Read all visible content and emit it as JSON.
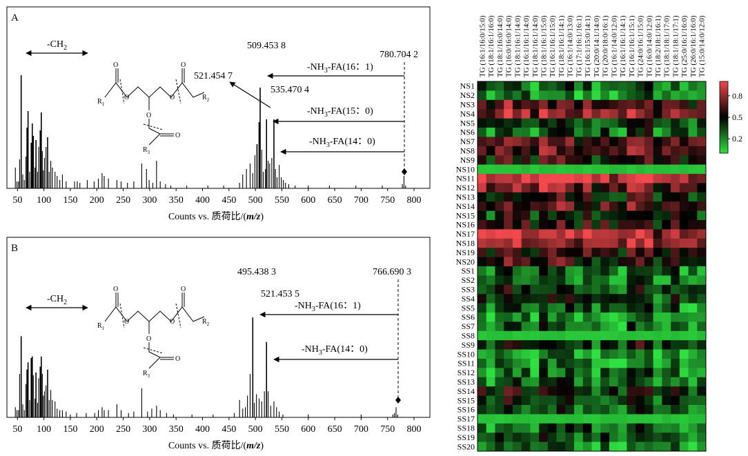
{
  "chart_data": [
    {
      "panel": "A",
      "type": "bar",
      "xlabel": "Counts vs. 质荷比/(m/z)",
      "xlim": [
        30,
        830
      ],
      "xticks": [
        50,
        100,
        150,
        200,
        250,
        300,
        350,
        400,
        450,
        500,
        550,
        600,
        650,
        700,
        750,
        800
      ],
      "ylim": [
        0,
        1
      ],
      "peaks": [
        [
          46,
          0.15
        ],
        [
          49,
          0.05
        ],
        [
          52,
          0.05
        ],
        [
          54,
          0.21
        ],
        [
          57,
          0.82
        ],
        [
          60,
          0.1
        ],
        [
          63,
          0.06
        ],
        [
          66,
          0.23
        ],
        [
          68,
          0.44
        ],
        [
          70,
          0.56
        ],
        [
          73,
          0.12
        ],
        [
          76,
          0.33
        ],
        [
          78,
          0.47
        ],
        [
          80,
          0.38
        ],
        [
          83,
          0.15
        ],
        [
          85,
          0.35
        ],
        [
          88,
          0.12
        ],
        [
          90,
          0.3
        ],
        [
          93,
          0.42
        ],
        [
          95,
          0.55
        ],
        [
          97,
          0.27
        ],
        [
          99,
          0.13
        ],
        [
          101,
          0.22
        ],
        [
          104,
          0.3
        ],
        [
          107,
          0.37
        ],
        [
          110,
          0.12
        ],
        [
          113,
          0.2
        ],
        [
          116,
          0.15
        ],
        [
          121,
          0.12
        ],
        [
          125,
          0.09
        ],
        [
          130,
          0.06
        ],
        [
          135,
          0.1
        ],
        [
          142,
          0.05
        ],
        [
          158,
          0.05
        ],
        [
          163,
          0.05
        ],
        [
          168,
          0.04
        ],
        [
          182,
          0.06
        ],
        [
          195,
          0.05
        ],
        [
          203,
          0.07
        ],
        [
          210,
          0.11
        ],
        [
          214,
          0.09
        ],
        [
          222,
          0.07
        ],
        [
          238,
          0.06
        ],
        [
          246,
          0.05
        ],
        [
          258,
          0.04
        ],
        [
          270,
          0.05
        ],
        [
          285,
          0.18
        ],
        [
          294,
          0.14
        ],
        [
          299,
          0.06
        ],
        [
          306,
          0.04
        ],
        [
          313,
          0.2
        ],
        [
          320,
          0.05
        ],
        [
          330,
          0.03
        ],
        [
          340,
          0.02
        ],
        [
          370,
          0.02
        ],
        [
          410,
          0.02
        ],
        [
          440,
          0.02
        ],
        [
          470,
          0.04
        ],
        [
          476,
          0.1
        ],
        [
          483,
          0.14
        ],
        [
          490,
          0.18
        ],
        [
          495,
          0.11
        ],
        [
          499,
          0.24
        ],
        [
          503,
          0.32
        ],
        [
          507,
          0.48
        ],
        [
          509,
          0.73
        ],
        [
          512,
          0.28
        ],
        [
          515,
          0.12
        ],
        [
          519,
          0.14
        ],
        [
          521,
          0.5
        ],
        [
          524,
          0.2
        ],
        [
          527,
          0.18
        ],
        [
          531,
          0.22
        ],
        [
          535,
          0.5
        ],
        [
          538,
          0.14
        ],
        [
          541,
          0.08
        ],
        [
          545,
          0.17
        ],
        [
          549,
          0.08
        ],
        [
          553,
          0.06
        ],
        [
          557,
          0.04
        ],
        [
          563,
          0.03
        ],
        [
          575,
          0.02
        ],
        [
          600,
          0.02
        ],
        [
          640,
          0.02
        ],
        [
          690,
          0.02
        ],
        [
          740,
          0.02
        ],
        [
          778,
          0.03
        ],
        [
          781,
          0.09
        ],
        [
          784,
          0.02
        ]
      ],
      "labels": [
        "509.453 8",
        "521.454 7",
        "535.470 4",
        "780.704 2",
        "-NH3-FA(16：1)",
        "-NH3-FA(15：0)",
        "-NH3-FA(14：0)",
        "-CH2"
      ],
      "structure_labels": [
        "R1",
        "R2",
        "R3"
      ]
    },
    {
      "panel": "B",
      "type": "bar",
      "xlabel": "Counts vs. 质荷比/(m/z)",
      "xlim": [
        30,
        830
      ],
      "xticks": [
        50,
        100,
        150,
        200,
        250,
        300,
        350,
        400,
        450,
        500,
        550,
        600,
        650,
        700,
        750,
        800
      ],
      "ylim": [
        0,
        1
      ],
      "peaks": [
        [
          46,
          0.07
        ],
        [
          49,
          0.05
        ],
        [
          52,
          0.05
        ],
        [
          54,
          0.3
        ],
        [
          57,
          0.56
        ],
        [
          60,
          0.09
        ],
        [
          63,
          0.05
        ],
        [
          66,
          0.23
        ],
        [
          68,
          0.33
        ],
        [
          70,
          0.38
        ],
        [
          73,
          0.12
        ],
        [
          76,
          0.41
        ],
        [
          78,
          0.42
        ],
        [
          80,
          0.29
        ],
        [
          83,
          0.13
        ],
        [
          85,
          0.31
        ],
        [
          88,
          0.1
        ],
        [
          90,
          0.27
        ],
        [
          93,
          0.35
        ],
        [
          95,
          0.42
        ],
        [
          97,
          0.3
        ],
        [
          99,
          0.15
        ],
        [
          101,
          0.18
        ],
        [
          104,
          0.22
        ],
        [
          107,
          0.33
        ],
        [
          110,
          0.12
        ],
        [
          113,
          0.19
        ],
        [
          116,
          0.12
        ],
        [
          121,
          0.11
        ],
        [
          125,
          0.06
        ],
        [
          130,
          0.05
        ],
        [
          135,
          0.05
        ],
        [
          142,
          0.04
        ],
        [
          150,
          0.02
        ],
        [
          162,
          0.03
        ],
        [
          180,
          0.03
        ],
        [
          196,
          0.03
        ],
        [
          203,
          0.05
        ],
        [
          210,
          0.07
        ],
        [
          214,
          0.05
        ],
        [
          222,
          0.05
        ],
        [
          238,
          0.09
        ],
        [
          246,
          0.05
        ],
        [
          260,
          0.03
        ],
        [
          270,
          0.04
        ],
        [
          285,
          0.2
        ],
        [
          296,
          0.04
        ],
        [
          304,
          0.06
        ],
        [
          313,
          0.08
        ],
        [
          320,
          0.05
        ],
        [
          332,
          0.03
        ],
        [
          345,
          0.02
        ],
        [
          380,
          0.02
        ],
        [
          420,
          0.02
        ],
        [
          460,
          0.03
        ],
        [
          470,
          0.12
        ],
        [
          476,
          0.06
        ],
        [
          481,
          0.07
        ],
        [
          485,
          0.15
        ],
        [
          490,
          0.3
        ],
        [
          495,
          0.69
        ],
        [
          498,
          0.1
        ],
        [
          502,
          0.16
        ],
        [
          507,
          0.13
        ],
        [
          512,
          0.11
        ],
        [
          517,
          0.18
        ],
        [
          521,
          0.52
        ],
        [
          524,
          0.18
        ],
        [
          529,
          0.08
        ],
        [
          535,
          0.11
        ],
        [
          540,
          0.07
        ],
        [
          545,
          0.04
        ],
        [
          552,
          0.02
        ],
        [
          600,
          0.02
        ],
        [
          700,
          0.02
        ],
        [
          760,
          0.02
        ],
        [
          763,
          0.03
        ],
        [
          766,
          0.07
        ],
        [
          769,
          0.02
        ]
      ],
      "labels": [
        "495.438 3",
        "521.453 5",
        "766.690 3",
        "-NH3-FA(16：1)",
        "-NH3-FA(14：0)",
        "-CH2"
      ],
      "structure_labels": [
        "R1",
        "R2",
        "R3"
      ]
    },
    {
      "panel": "heatmap",
      "type": "heatmap",
      "columns": [
        "TG (16:1/16:0/15:0)",
        "TG (18:1/16:1/16:0)",
        "TG (18:1/16:0/14:0)",
        "TG (16:0/16:0/14:0)",
        "TG (18:1/16:1/14:0)",
        "TG (16:1/16:1/14:0)",
        "TG (18:1/16:1/14:0)",
        "TG (18:1/16:1/15:0)",
        "TG (16:1/16:1/15:0)",
        "TG (18:1/16:1/14:1)",
        "TG (16:1/14:0/13:0)",
        "TG (17:1/16:1/16:1)",
        "TG (16:1/15:0/14:1)",
        "TG (20:0/14:1/14:0)",
        "TG (20:0/18:0/16:1)",
        "TG (16:1/14:0/12:0)",
        "TG (16:1/16:1/14:1)",
        "TG (16:1/16:1/15:1)",
        "TG (24:0/16:1/15:0)",
        "TG (16:0/14:0/12:0)",
        "TG (18:2/18:1/16:1)",
        "TG (18:1/18:1/17:0)",
        "TG (18:1/18:1/17:1)",
        "TG (25:0/16:1/16:0)",
        "TG (26:0/16:1/16:0)",
        "TG (15:0/14:0/12:0)"
      ],
      "rows": [
        "NS1",
        "NS2",
        "NS3",
        "NS4",
        "NS5",
        "NS6",
        "NS7",
        "NS8",
        "NS9",
        "NS10",
        "NS11",
        "NS12",
        "NS13",
        "NS14",
        "NS15",
        "NS16",
        "NS17",
        "NS18",
        "NS19",
        "NS20",
        "SS1",
        "SS2",
        "SS3",
        "SS4",
        "SS5",
        "SS6",
        "SS7",
        "SS8",
        "SS9",
        "SS10",
        "SS11",
        "SS12",
        "SS13",
        "SS14",
        "SS15",
        "SS16",
        "SS17",
        "SS18",
        "SS19",
        "SS20"
      ],
      "colorbar_ticks": [
        0.8,
        0.5,
        0.2
      ],
      "color_scale": {
        "low": "#2ee040",
        "mid": "#000000",
        "high": "#f0484c",
        "min": 0,
        "max": 1
      },
      "row_levels": [
        0.25,
        0.2,
        0.6,
        0.75,
        0.35,
        0.3,
        0.65,
        0.62,
        0.5,
        0.05,
        0.9,
        0.7,
        0.5,
        0.62,
        0.4,
        0.55,
        0.88,
        0.8,
        0.55,
        0.52,
        0.25,
        0.2,
        0.35,
        0.4,
        0.25,
        0.2,
        0.25,
        0.05,
        0.4,
        0.15,
        0.2,
        0.22,
        0.25,
        0.45,
        0.35,
        0.28,
        0.05,
        0.25,
        0.3,
        0.2
      ]
    }
  ]
}
